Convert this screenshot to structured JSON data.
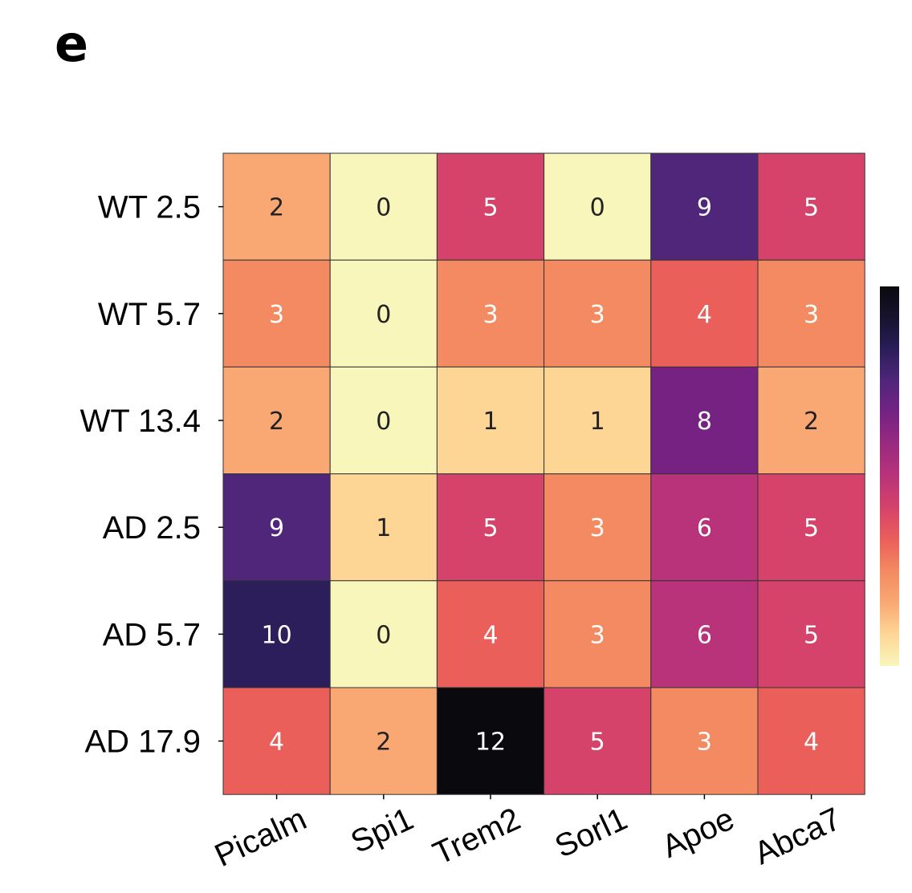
{
  "panel_label": "e",
  "chart_data": {
    "type": "heatmap",
    "rows": [
      "WT 2.5",
      "WT 5.7",
      "WT 13.4",
      "AD 2.5",
      "AD 5.7",
      "AD 17.9"
    ],
    "columns": [
      "Picalm",
      "Spi1",
      "Trem2",
      "Sorl1",
      "Apoe",
      "Abca7"
    ],
    "values": [
      [
        2,
        0,
        5,
        0,
        9,
        5
      ],
      [
        3,
        0,
        3,
        3,
        4,
        3
      ],
      [
        2,
        0,
        1,
        1,
        8,
        2
      ],
      [
        9,
        1,
        5,
        3,
        6,
        5
      ],
      [
        10,
        0,
        4,
        3,
        6,
        5
      ],
      [
        4,
        2,
        12,
        5,
        3,
        4
      ]
    ],
    "color_range": [
      0,
      12
    ],
    "colormap": "magma_r",
    "colorbar": "right"
  }
}
